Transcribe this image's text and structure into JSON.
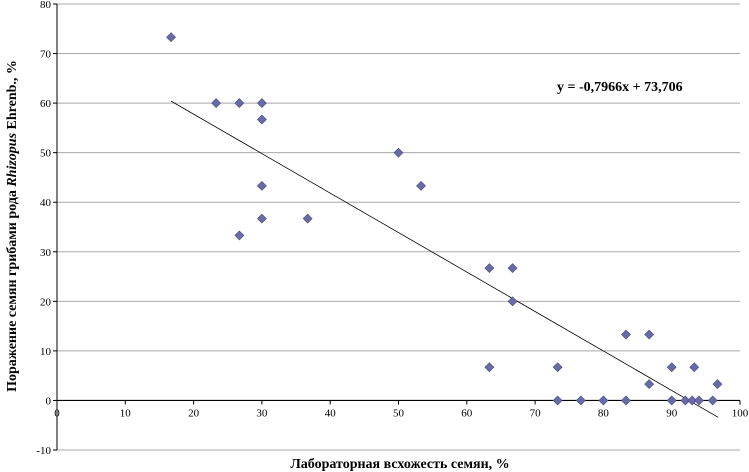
{
  "chart_data": {
    "type": "scatter",
    "xlabel": "Лабораторная всхожесть семян, %",
    "ylabel_parts": {
      "prefix": "Поражение семян грибами рода ",
      "genus": "Rhizopus",
      "suffix": " Ehrenb., %"
    },
    "xlim": [
      0,
      100
    ],
    "ylim": [
      -10,
      80
    ],
    "x_ticks": [
      "0",
      "10",
      "20",
      "30",
      "40",
      "50",
      "60",
      "70",
      "80",
      "90",
      "100"
    ],
    "y_ticks": [
      "-10",
      "0",
      "10",
      "20",
      "30",
      "40",
      "50",
      "60",
      "70",
      "80"
    ],
    "grid": "horizontal",
    "marker_color": "#6a6aa6",
    "trendline": {
      "slope": -0.7966,
      "intercept": 73.706,
      "x_range": [
        16.7,
        96.8
      ],
      "equation": "y = -0,7966x + 73,706"
    },
    "points": [
      {
        "x": 16.7,
        "y": 73.3
      },
      {
        "x": 23.3,
        "y": 60.0
      },
      {
        "x": 26.7,
        "y": 60.0
      },
      {
        "x": 30.0,
        "y": 60.0
      },
      {
        "x": 30.0,
        "y": 56.7
      },
      {
        "x": 50.0,
        "y": 50.0
      },
      {
        "x": 30.0,
        "y": 43.3
      },
      {
        "x": 53.3,
        "y": 43.3
      },
      {
        "x": 30.0,
        "y": 36.7
      },
      {
        "x": 36.7,
        "y": 36.7
      },
      {
        "x": 26.7,
        "y": 33.3
      },
      {
        "x": 63.3,
        "y": 26.7
      },
      {
        "x": 66.7,
        "y": 26.7
      },
      {
        "x": 66.7,
        "y": 20.0
      },
      {
        "x": 83.3,
        "y": 13.3
      },
      {
        "x": 86.7,
        "y": 13.3
      },
      {
        "x": 63.3,
        "y": 6.7
      },
      {
        "x": 73.3,
        "y": 6.7
      },
      {
        "x": 90.0,
        "y": 6.7
      },
      {
        "x": 93.3,
        "y": 6.7
      },
      {
        "x": 86.7,
        "y": 3.3
      },
      {
        "x": 96.7,
        "y": 3.3
      },
      {
        "x": 73.3,
        "y": 0.0
      },
      {
        "x": 76.7,
        "y": 0.0
      },
      {
        "x": 80.0,
        "y": 0.0
      },
      {
        "x": 83.3,
        "y": 0.0
      },
      {
        "x": 90.0,
        "y": 0.0
      },
      {
        "x": 92.0,
        "y": 0.0
      },
      {
        "x": 93.0,
        "y": 0.0
      },
      {
        "x": 94.0,
        "y": 0.0
      },
      {
        "x": 96.0,
        "y": 0.0
      }
    ]
  }
}
